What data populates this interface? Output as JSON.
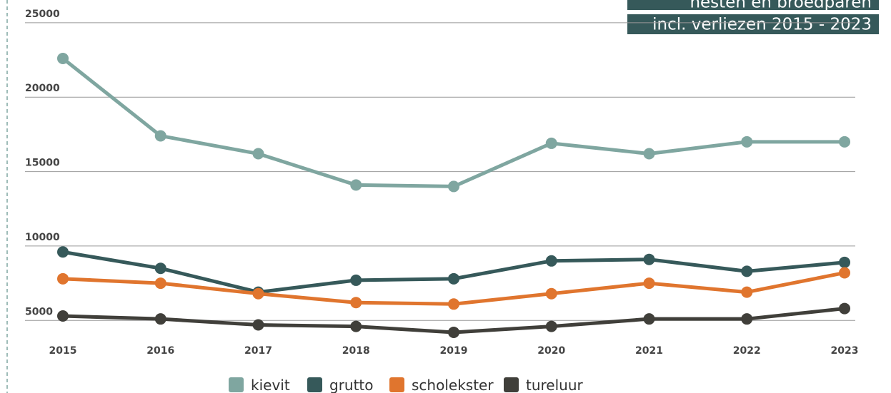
{
  "chart_data": {
    "type": "line",
    "title": "nesten en broedparen",
    "subtitle": "incl. verliezen 2015 - 2023",
    "categories": [
      "2015",
      "2016",
      "2017",
      "2018",
      "2019",
      "2020",
      "2021",
      "2022",
      "2023"
    ],
    "series": [
      {
        "name": "kievit",
        "color": "#7fa6a0",
        "values": [
          22600,
          17400,
          16200,
          14100,
          14000,
          16900,
          16200,
          17000,
          17000
        ]
      },
      {
        "name": "grutto",
        "color": "#36595a",
        "values": [
          9600,
          8500,
          6900,
          7700,
          7800,
          9000,
          9100,
          8300,
          8900
        ]
      },
      {
        "name": "scholekster",
        "color": "#e0752e",
        "values": [
          7800,
          7500,
          6800,
          6200,
          6100,
          6800,
          7500,
          6900,
          8200
        ]
      },
      {
        "name": "tureluur",
        "color": "#403f3a",
        "values": [
          5300,
          5100,
          4700,
          4600,
          4200,
          4600,
          5100,
          5100,
          5800
        ]
      }
    ],
    "ylim": [
      3000,
      26000
    ],
    "yticks": [
      5000,
      10000,
      15000,
      20000,
      25000
    ],
    "grid": true
  }
}
